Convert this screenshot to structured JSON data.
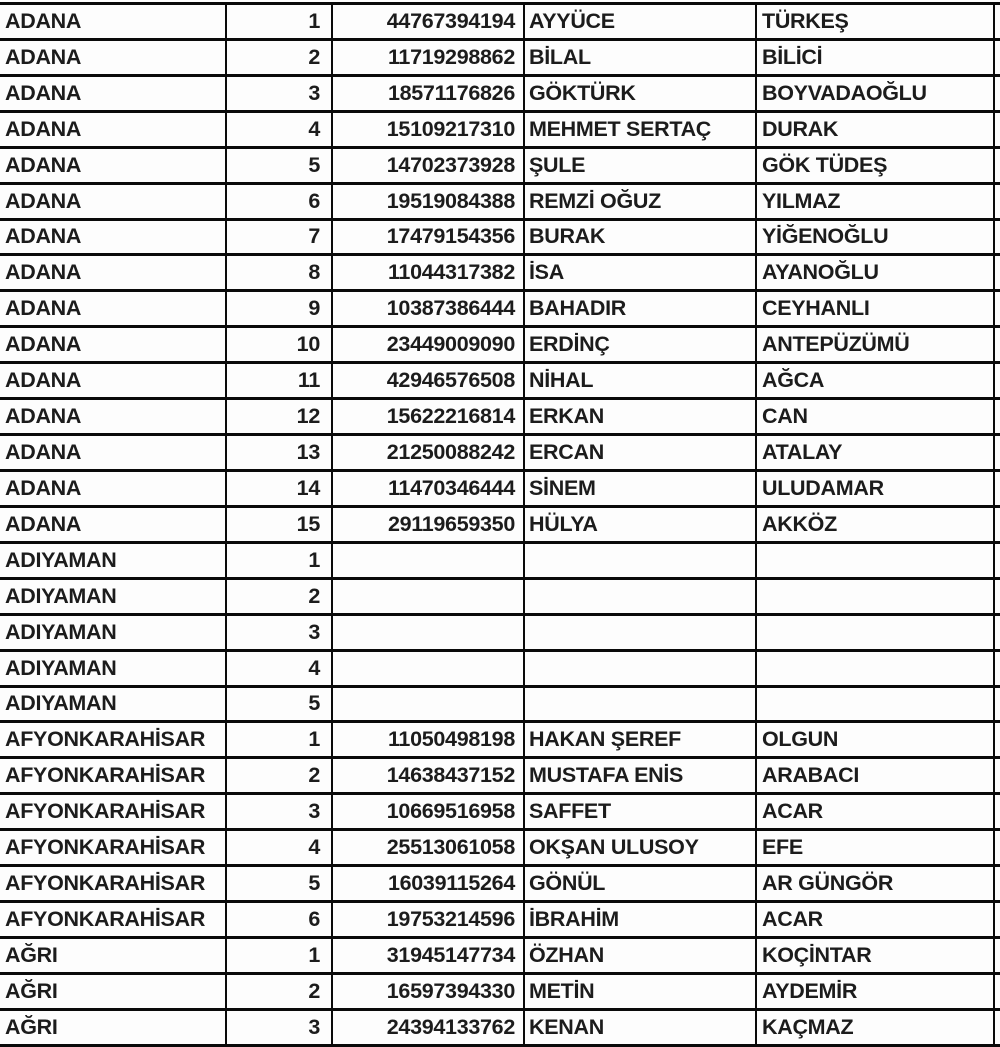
{
  "style": {
    "border_color": "#0a0a0a",
    "text_color": "#1c1c1c",
    "cell_background": "#fdfdfd",
    "page_background": "#ffffff"
  },
  "table": {
    "rows": [
      [
        "ADANA",
        "1",
        "44767394194",
        "AYYÜCE",
        "TÜRKEŞ"
      ],
      [
        "ADANA",
        "2",
        "11719298862",
        "BİLAL",
        "BİLİCİ"
      ],
      [
        "ADANA",
        "3",
        "18571176826",
        "GÖKTÜRK",
        "BOYVADAOĞLU"
      ],
      [
        "ADANA",
        "4",
        "15109217310",
        "MEHMET SERTAÇ",
        "DURAK"
      ],
      [
        "ADANA",
        "5",
        "14702373928",
        "ŞULE",
        "GÖK TÜDEŞ"
      ],
      [
        "ADANA",
        "6",
        "19519084388",
        "REMZİ OĞUZ",
        "YILMAZ"
      ],
      [
        "ADANA",
        "7",
        "17479154356",
        "BURAK",
        "YİĞENOĞLU"
      ],
      [
        "ADANA",
        "8",
        "11044317382",
        "İSA",
        "AYANOĞLU"
      ],
      [
        "ADANA",
        "9",
        "10387386444",
        "BAHADIR",
        "CEYHANLI"
      ],
      [
        "ADANA",
        "10",
        "23449009090",
        "ERDİNÇ",
        "ANTEPÜZÜMÜ"
      ],
      [
        "ADANA",
        "11",
        "42946576508",
        "NİHAL",
        "AĞCA"
      ],
      [
        "ADANA",
        "12",
        "15622216814",
        "ERKAN",
        "CAN"
      ],
      [
        "ADANA",
        "13",
        "21250088242",
        "ERCAN",
        "ATALAY"
      ],
      [
        "ADANA",
        "14",
        "11470346444",
        "SİNEM",
        "ULUDAMAR"
      ],
      [
        "ADANA",
        "15",
        "29119659350",
        "HÜLYA",
        "AKKÖZ"
      ],
      [
        "ADIYAMAN",
        "1",
        "",
        "",
        ""
      ],
      [
        "ADIYAMAN",
        "2",
        "",
        "",
        ""
      ],
      [
        "ADIYAMAN",
        "3",
        "",
        "",
        ""
      ],
      [
        "ADIYAMAN",
        "4",
        "",
        "",
        ""
      ],
      [
        "ADIYAMAN",
        "5",
        "",
        "",
        ""
      ],
      [
        "AFYONKARAHİSAR",
        "1",
        "11050498198",
        "HAKAN ŞEREF",
        "OLGUN"
      ],
      [
        "AFYONKARAHİSAR",
        "2",
        "14638437152",
        "MUSTAFA ENİS",
        "ARABACI"
      ],
      [
        "AFYONKARAHİSAR",
        "3",
        "10669516958",
        "SAFFET",
        "ACAR"
      ],
      [
        "AFYONKARAHİSAR",
        "4",
        "25513061058",
        "OKŞAN ULUSOY",
        "EFE"
      ],
      [
        "AFYONKARAHİSAR",
        "5",
        "16039115264",
        "GÖNÜL",
        "AR GÜNGÖR"
      ],
      [
        "AFYONKARAHİSAR",
        "6",
        "19753214596",
        "İBRAHİM",
        "ACAR"
      ],
      [
        "AĞRI",
        "1",
        "31945147734",
        "ÖZHAN",
        "KOÇİNTAR"
      ],
      [
        "AĞRI",
        "2",
        "16597394330",
        "METİN",
        "AYDEMİR"
      ],
      [
        "AĞRI",
        "3",
        "24394133762",
        "KENAN",
        "KAÇMAZ"
      ]
    ]
  }
}
